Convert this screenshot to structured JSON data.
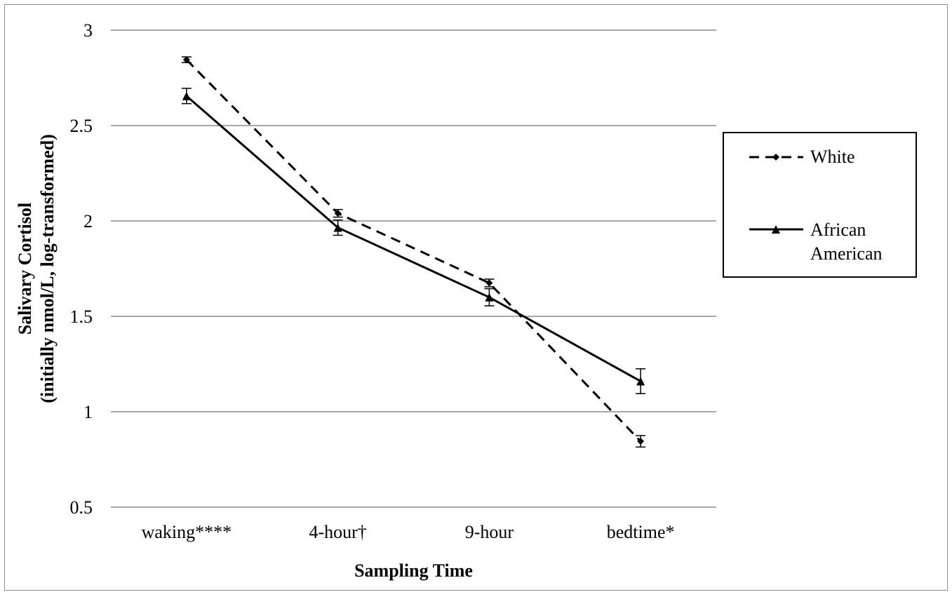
{
  "chart_data": {
    "type": "line",
    "categories": [
      "waking****",
      "4-hour†",
      "9-hour",
      "bedtime*"
    ],
    "xlabel": "Sampling Time",
    "ylabel_line1": "Salivary Cortisol",
    "ylabel_line2": "(initially nmol/L, log-transformed)",
    "ylim": [
      0.5,
      3
    ],
    "yticks": [
      0.5,
      1,
      1.5,
      2,
      2.5,
      3
    ],
    "ytick_labels": [
      "0.5",
      "1",
      "1.5",
      "2",
      "2.5",
      "3"
    ],
    "grid": true,
    "legend_position": "right",
    "series": [
      {
        "name": "White",
        "values": [
          2.845,
          2.04,
          1.675,
          0.845
        ],
        "error": [
          0.015,
          0.02,
          0.02,
          0.03
        ],
        "line_style": "dashed",
        "marker": "diamond",
        "color": "#000000"
      },
      {
        "name": "African American",
        "name_lines": [
          "African",
          "American"
        ],
        "values": [
          2.655,
          1.965,
          1.6,
          1.16
        ],
        "error": [
          0.04,
          0.04,
          0.045,
          0.065
        ],
        "line_style": "solid",
        "marker": "triangle",
        "color": "#000000"
      }
    ]
  }
}
